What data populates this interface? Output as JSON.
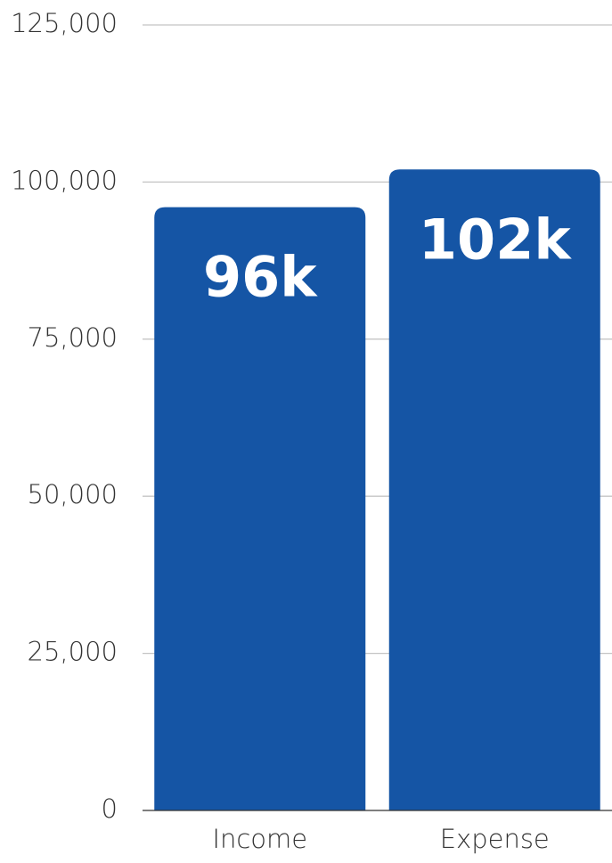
{
  "chart_data": {
    "type": "bar",
    "title": "",
    "xlabel": "",
    "ylabel": "",
    "categories": [
      "Income",
      "Expense"
    ],
    "values": [
      96000,
      102000
    ],
    "data_labels": [
      "96k",
      "102k"
    ],
    "ylim": [
      0,
      125000
    ],
    "yticks": [
      0,
      25000,
      50000,
      75000,
      100000,
      125000
    ],
    "ytick_labels": [
      "0",
      "25,000",
      "50,000",
      "75,000",
      "100,000",
      "125,000"
    ],
    "grid": true,
    "legend": "none",
    "bar_color": "#1555a5"
  }
}
